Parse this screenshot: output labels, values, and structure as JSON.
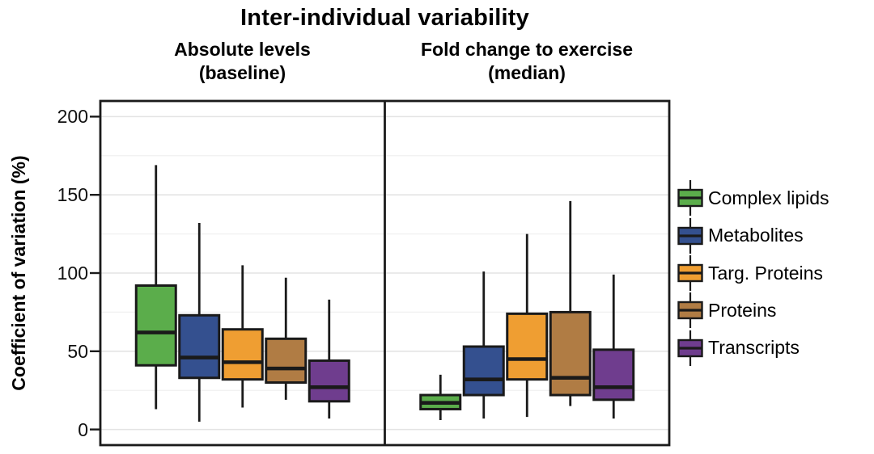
{
  "chart_data": {
    "type": "boxplot",
    "title": "Inter-individual variability",
    "ylabel": "Coefficient of variation (%)",
    "xlabel": "",
    "ylim": [
      -10,
      210
    ],
    "yticks": [
      0,
      50,
      100,
      150,
      200
    ],
    "minor_gridlines": [
      25,
      75,
      125,
      175
    ],
    "grid": true,
    "legend_position": "right",
    "groups": [
      "Complex lipids",
      "Metabolites",
      "Targ. Proteins",
      "Proteins",
      "Transcripts"
    ],
    "facets": [
      {
        "label": [
          "Absolute levels",
          "(baseline)"
        ],
        "boxes": [
          {
            "group": "Complex lipids",
            "color": "#5BAD4B",
            "whisker_low": 13,
            "q1": 41,
            "median": 62,
            "q3": 92,
            "whisker_high": 169
          },
          {
            "group": "Metabolites",
            "color": "#34508F",
            "whisker_low": 5,
            "q1": 33,
            "median": 46,
            "q3": 73,
            "whisker_high": 132
          },
          {
            "group": "Targ. Proteins",
            "color": "#EF9E32",
            "whisker_low": 14,
            "q1": 32,
            "median": 43,
            "q3": 64,
            "whisker_high": 105
          },
          {
            "group": "Proteins",
            "color": "#B07C44",
            "whisker_low": 19,
            "q1": 30,
            "median": 39,
            "q3": 58,
            "whisker_high": 97
          },
          {
            "group": "Transcripts",
            "color": "#6F3D8E",
            "whisker_low": 7,
            "q1": 18,
            "median": 27,
            "q3": 44,
            "whisker_high": 83
          }
        ]
      },
      {
        "label": [
          "Fold change to exercise",
          "(median)"
        ],
        "boxes": [
          {
            "group": "Complex lipids",
            "color": "#5BAD4B",
            "whisker_low": 6,
            "q1": 13,
            "median": 17,
            "q3": 22,
            "whisker_high": 35
          },
          {
            "group": "Metabolites",
            "color": "#34508F",
            "whisker_low": 7,
            "q1": 22,
            "median": 32,
            "q3": 53,
            "whisker_high": 101
          },
          {
            "group": "Targ. Proteins",
            "color": "#EF9E32",
            "whisker_low": 8,
            "q1": 32,
            "median": 45,
            "q3": 74,
            "whisker_high": 125
          },
          {
            "group": "Proteins",
            "color": "#B07C44",
            "whisker_low": 15,
            "q1": 22,
            "median": 33,
            "q3": 75,
            "whisker_high": 146
          },
          {
            "group": "Transcripts",
            "color": "#6F3D8E",
            "whisker_low": 7,
            "q1": 19,
            "median": 27,
            "q3": 51,
            "whisker_high": 99
          }
        ]
      }
    ],
    "legend": [
      {
        "label": "Complex lipids",
        "color": "#5BAD4B"
      },
      {
        "label": "Metabolites",
        "color": "#34508F"
      },
      {
        "label": "Targ. Proteins",
        "color": "#EF9E32"
      },
      {
        "label": "Proteins",
        "color": "#B07C44"
      },
      {
        "label": "Transcripts",
        "color": "#6F3D8E"
      }
    ],
    "style_colors": {
      "box_border": "#1a1a1a",
      "panel_border": "#1a1a1a",
      "major_grid": "#e3e3e3",
      "minor_grid": "#f0f0f0",
      "background": "#ffffff"
    }
  }
}
